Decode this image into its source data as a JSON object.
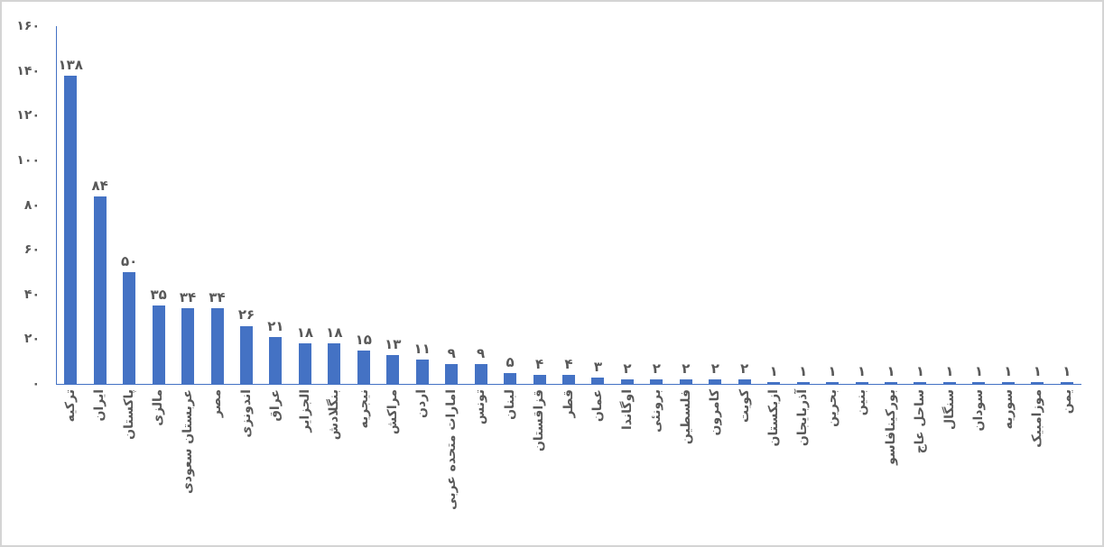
{
  "chart_data": {
    "type": "bar",
    "title": "",
    "xlabel": "",
    "ylabel": "",
    "ylim": [
      0,
      160
    ],
    "y_tick_step": 20,
    "grid": false,
    "legend": null,
    "bar_color": "#4472c4",
    "axis_color": "#4472c4",
    "text_color": "#595959",
    "categories": [
      "ترکیه",
      "ایران",
      "پاکستان",
      "مالزی",
      "عربستان سعودی",
      "مصر",
      "اندونزی",
      "عراق",
      "الجزایر",
      "بنگلادش",
      "نیجریه",
      "مراکش",
      "اردن",
      "امارات متحده عربی",
      "تونس",
      "لبنان",
      "قزاقستان",
      "قطر",
      "عمان",
      "اوگاندا",
      "برونئی",
      "فلسطین",
      "کامرون",
      "کویت",
      "ازبکستان",
      "آذربایجان",
      "بحرین",
      "بنین",
      "بورکینافاسو",
      "ساحل عاج",
      "سنگال",
      "سودان",
      "سوریه",
      "موزامبیک",
      "یمن"
    ],
    "values": [
      138,
      84,
      50,
      35,
      34,
      34,
      26,
      21,
      18,
      18,
      15,
      13,
      11,
      9,
      9,
      5,
      4,
      4,
      3,
      2,
      2,
      2,
      2,
      2,
      1,
      1,
      1,
      1,
      1,
      1,
      1,
      1,
      1,
      1,
      1
    ],
    "value_labels": [
      "۱۳۸",
      "۸۴",
      "۵۰",
      "۳۵",
      "۳۴",
      "۳۴",
      "۲۶",
      "۲۱",
      "۱۸",
      "۱۸",
      "۱۵",
      "۱۳",
      "۱۱",
      "۹",
      "۹",
      "۵",
      "۴",
      "۴",
      "۳",
      "۲",
      "۲",
      "۲",
      "۲",
      "۲",
      "۱",
      "۱",
      "۱",
      "۱",
      "۱",
      "۱",
      "۱",
      "۱",
      "۱",
      "۱",
      "۱"
    ],
    "y_tick_values": [
      160,
      140,
      120,
      100,
      80,
      60,
      40,
      20,
      0
    ],
    "y_tick_labels": [
      "۱۶۰",
      "۱۴۰",
      "۱۲۰",
      "۱۰۰",
      "۸۰",
      "۶۰",
      "۴۰",
      "۲۰",
      "۰"
    ]
  }
}
